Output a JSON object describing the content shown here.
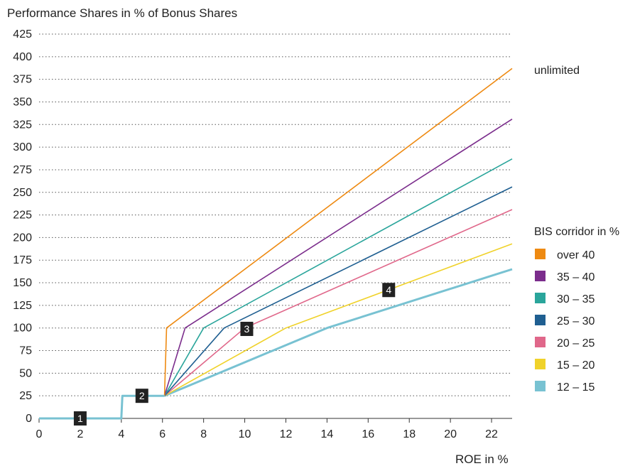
{
  "chart_data": {
    "type": "line",
    "title": "Performance Shares in % of Bonus Shares",
    "xlabel": "ROE in %",
    "ylabel": "Performance Shares in % of Bonus Shares",
    "xlim": [
      0,
      23
    ],
    "ylim": [
      0,
      425
    ],
    "x_ticks": [
      0,
      2,
      4,
      6,
      8,
      10,
      12,
      14,
      16,
      18,
      20,
      22
    ],
    "y_ticks": [
      0,
      25,
      50,
      75,
      100,
      125,
      150,
      175,
      200,
      225,
      250,
      275,
      300,
      325,
      350,
      375,
      400,
      425
    ],
    "grid": "horizontal dotted",
    "legend": {
      "title": "BIS corridor in %",
      "placement": "right"
    },
    "annotation_unlimited": "unlimited",
    "base_line": {
      "name": "12 – 15",
      "color": "#78c2d2",
      "points": [
        [
          0,
          0
        ],
        [
          4,
          0
        ],
        [
          4.05,
          25
        ],
        [
          6.1,
          25
        ]
      ]
    },
    "series": [
      {
        "name": "over 40",
        "color": "#ee8a12",
        "points": [
          [
            6.1,
            25
          ],
          [
            6.2,
            100
          ],
          [
            23,
            387
          ]
        ]
      },
      {
        "name": "35 – 40",
        "color": "#7b2d8c",
        "points": [
          [
            6.1,
            25
          ],
          [
            7.1,
            100
          ],
          [
            23,
            331
          ]
        ]
      },
      {
        "name": "30 – 35",
        "color": "#2aa59b",
        "points": [
          [
            6.1,
            25
          ],
          [
            8.0,
            100
          ],
          [
            23,
            287
          ]
        ]
      },
      {
        "name": "25 – 30",
        "color": "#1f5f91",
        "points": [
          [
            6.1,
            25
          ],
          [
            9.0,
            100
          ],
          [
            23,
            256
          ]
        ]
      },
      {
        "name": "20 – 25",
        "color": "#e0678a",
        "points": [
          [
            6.1,
            25
          ],
          [
            10.0,
            100
          ],
          [
            23,
            231
          ]
        ]
      },
      {
        "name": "15 – 20",
        "color": "#f0d22a",
        "points": [
          [
            6.1,
            25
          ],
          [
            12.0,
            100
          ],
          [
            23,
            193
          ]
        ]
      },
      {
        "name": "12 – 15",
        "color": "#78c2d2",
        "points": [
          [
            6.1,
            25
          ],
          [
            14.0,
            100
          ],
          [
            23,
            165
          ]
        ]
      }
    ],
    "markers": [
      {
        "label": "1",
        "x": 2,
        "y": 0
      },
      {
        "label": "2",
        "x": 5,
        "y": 25
      },
      {
        "label": "3",
        "x": 10.1,
        "y": 99
      },
      {
        "label": "4",
        "x": 17,
        "y": 142
      }
    ]
  }
}
